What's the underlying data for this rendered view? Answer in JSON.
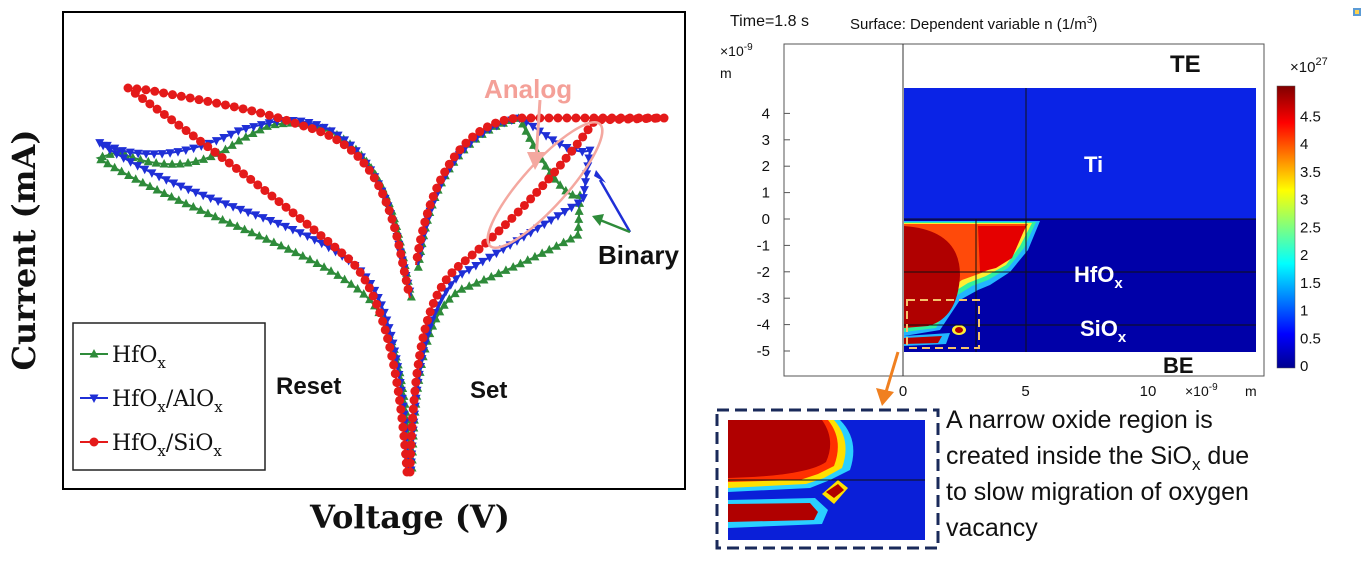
{
  "left_chart": {
    "ylabel": "Current (mA)",
    "xlabel": "Voltage (V)",
    "annot_analog": "Analog",
    "annot_binary": "Binary",
    "annot_reset": "Reset",
    "annot_set": "Set",
    "legend": [
      {
        "base": "HfO",
        "sub": "x",
        "mid": "",
        "sub2": "",
        "color": "#2e8b3a",
        "marker": "triangle-up"
      },
      {
        "base": "HfO",
        "sub": "x",
        "mid": "/AlO",
        "sub2": "x",
        "color": "#1f2fd6",
        "marker": "triangle-down"
      },
      {
        "base": "HfO",
        "sub": "x",
        "mid": "/SiO",
        "sub2": "x",
        "color": "#e41a1a",
        "marker": "circle"
      }
    ]
  },
  "right_chart": {
    "time_label": "Time=1.8 s",
    "surface_label": "Surface: Dependent variable n (1/m",
    "surface_sup": "3",
    "surface_close": ")",
    "y_unit_exp": "×10",
    "y_unit_exp_sup": "-9",
    "y_unit": "m",
    "x_unit_exp": "×10",
    "x_unit_exp_sup": "-9",
    "x_unit": "m",
    "cb_exp": "×10",
    "cb_exp_sup": "27",
    "region_te": "TE",
    "region_ti": "Ti",
    "region_hfox": "HfO",
    "region_hfox_sub": "x",
    "region_siox": "SiO",
    "region_siox_sub": "x",
    "region_be": "BE",
    "caption_lines": [
      "A narrow oxide region is",
      "created inside the SiO",
      "to slow migration of oxygen",
      "vacancy"
    ],
    "caption_sub": "x",
    "caption_line2_tail": " due"
  },
  "chart_data": [
    {
      "type": "line",
      "title": "",
      "xlabel": "Voltage (V)",
      "ylabel": "Current (mA)",
      "x_ticks": "none",
      "y_ticks": "none",
      "grid": false,
      "legend_position": "bottom-left",
      "series": [
        {
          "name": "HfOx",
          "color": "#2e8b3a",
          "marker": "triangle-up"
        },
        {
          "name": "HfOx/AlOx",
          "color": "#1f2fd6",
          "marker": "triangle-down"
        },
        {
          "name": "HfOx/SiOx",
          "color": "#e41a1a",
          "marker": "circle"
        }
      ]
    },
    {
      "type": "heatmap",
      "title": "Surface: Dependent variable n (1/m3)",
      "time": "1.8 s",
      "x_ticks": [
        0,
        5,
        10
      ],
      "y_ticks": [
        4,
        3,
        2,
        1,
        0,
        -1,
        -2,
        -3,
        -4,
        -5
      ],
      "x_scale": "×10^-9 m",
      "y_scale": "×10^-9 m",
      "colorbar_ticks": [
        4.5,
        4,
        3.5,
        3,
        2.5,
        2,
        1.5,
        1,
        0.5,
        0
      ],
      "colorbar_scale": "×10^27",
      "colormap": "jet"
    }
  ]
}
